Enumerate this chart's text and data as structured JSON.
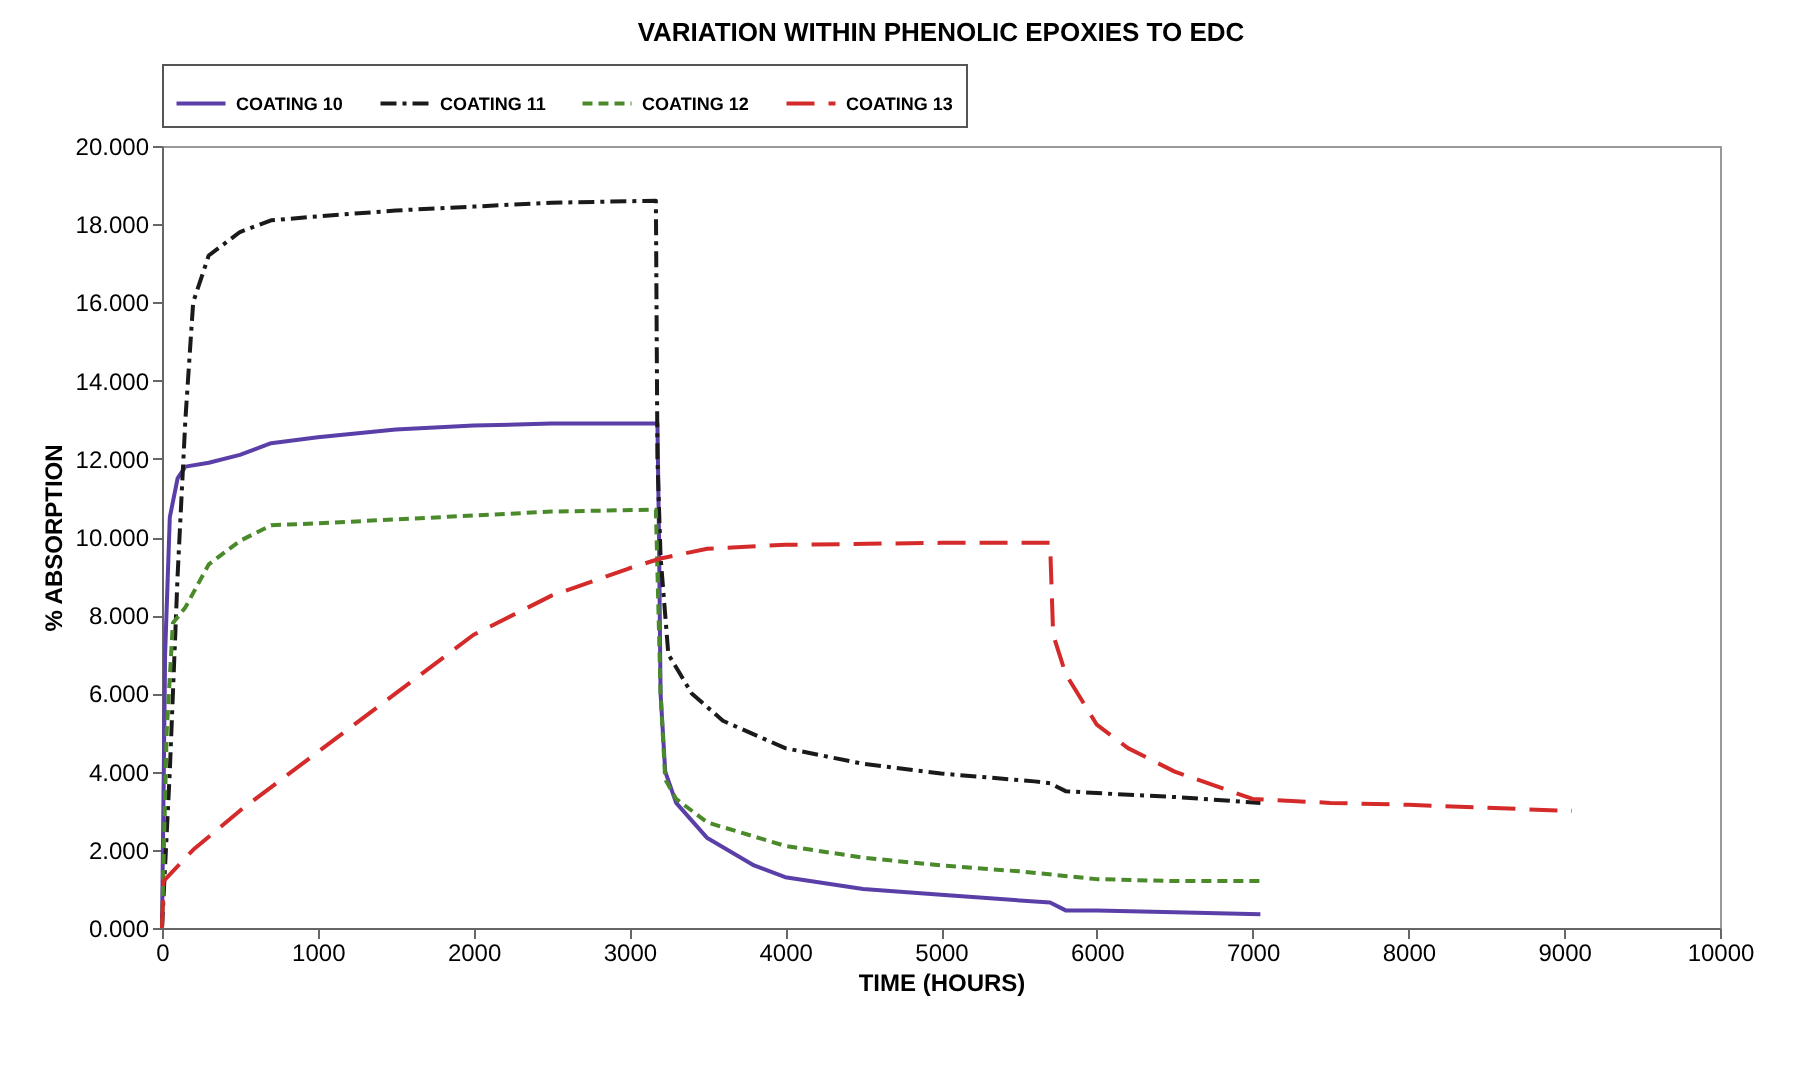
{
  "chart_data": {
    "type": "line",
    "title": "VARIATION WITHIN PHENOLIC EPOXIES TO EDC",
    "xlabel": "TIME (HOURS)",
    "ylabel": "% ABSORPTION",
    "xlim": [
      0,
      10000
    ],
    "xticks": [
      0,
      1000,
      2000,
      3000,
      4000,
      5000,
      6000,
      7000,
      8000,
      9000,
      10000
    ],
    "ylim": [
      0,
      20
    ],
    "yticks": [
      {
        "value": 0,
        "label": "0.000"
      },
      {
        "value": 2,
        "label": "2.000"
      },
      {
        "value": 4,
        "label": "4.000"
      },
      {
        "value": 6,
        "label": "6.000"
      },
      {
        "value": 8,
        "label": "8.000"
      },
      {
        "value": 10,
        "label": "10.000"
      },
      {
        "value": 12,
        "label": "12.000"
      },
      {
        "value": 14,
        "label": "14.000"
      },
      {
        "value": 16,
        "label": "16.000"
      },
      {
        "value": 18,
        "label": "18.000"
      },
      {
        "value": 20,
        "label": "20.000"
      }
    ],
    "grid": false,
    "legend": "top",
    "marker": "none",
    "series": [
      {
        "name": "COATING 10",
        "color": "#5b3fa8",
        "line_style": "solid",
        "x": [
          0,
          20,
          50,
          100,
          150,
          300,
          500,
          700,
          1000,
          1500,
          2000,
          2500,
          3180,
          3190,
          3200,
          3230,
          3300,
          3500,
          3800,
          4000,
          4500,
          5000,
          5700,
          5800,
          6000,
          6500,
          7050
        ],
        "values": [
          0,
          7,
          10.5,
          11.5,
          11.8,
          11.9,
          12.1,
          12.4,
          12.55,
          12.75,
          12.85,
          12.9,
          12.9,
          10,
          6,
          4,
          3.2,
          2.3,
          1.6,
          1.3,
          1.0,
          0.85,
          0.65,
          0.45,
          0.45,
          0.4,
          0.35
        ]
      },
      {
        "name": "COATING 11",
        "color": "#1a1a1a",
        "line_style": "dashdot",
        "x": [
          0,
          50,
          100,
          150,
          200,
          300,
          500,
          700,
          1000,
          1500,
          2000,
          2500,
          3170,
          3180,
          3200,
          3250,
          3400,
          3600,
          4000,
          4500,
          5000,
          5600,
          5700,
          5800,
          6000,
          6500,
          7050
        ],
        "values": [
          0,
          4,
          9,
          13,
          16,
          17.2,
          17.8,
          18.1,
          18.2,
          18.35,
          18.45,
          18.55,
          18.6,
          12,
          9.5,
          7,
          6,
          5.3,
          4.6,
          4.2,
          3.95,
          3.75,
          3.7,
          3.5,
          3.45,
          3.35,
          3.2
        ]
      },
      {
        "name": "COATING 12",
        "color": "#4a8a2a",
        "line_style": "dotted",
        "x": [
          0,
          30,
          70,
          150,
          300,
          500,
          700,
          1000,
          1500,
          2000,
          2500,
          3170,
          3200,
          3230,
          3300,
          3500,
          4000,
          4500,
          5000,
          5500,
          6000,
          6500,
          7050
        ],
        "values": [
          0,
          5,
          7.8,
          8.2,
          9.3,
          9.9,
          10.3,
          10.35,
          10.45,
          10.55,
          10.65,
          10.7,
          6,
          3.8,
          3.3,
          2.7,
          2.1,
          1.8,
          1.6,
          1.45,
          1.25,
          1.2,
          1.2
        ]
      },
      {
        "name": "COATING 13",
        "color": "#d42a2a",
        "line_style": "dashed",
        "x": [
          0,
          10,
          200,
          500,
          1000,
          1500,
          2000,
          2500,
          3000,
          3200,
          3500,
          4000,
          5000,
          5700,
          5720,
          5800,
          6000,
          6200,
          6500,
          7000,
          7500,
          8000,
          9000,
          9050
        ],
        "values": [
          0,
          1.2,
          2.0,
          3.0,
          4.5,
          6.0,
          7.5,
          8.5,
          9.2,
          9.45,
          9.7,
          9.8,
          9.85,
          9.85,
          7.5,
          6.5,
          5.2,
          4.6,
          4.0,
          3.3,
          3.2,
          3.15,
          3.0,
          3.0
        ]
      }
    ]
  }
}
